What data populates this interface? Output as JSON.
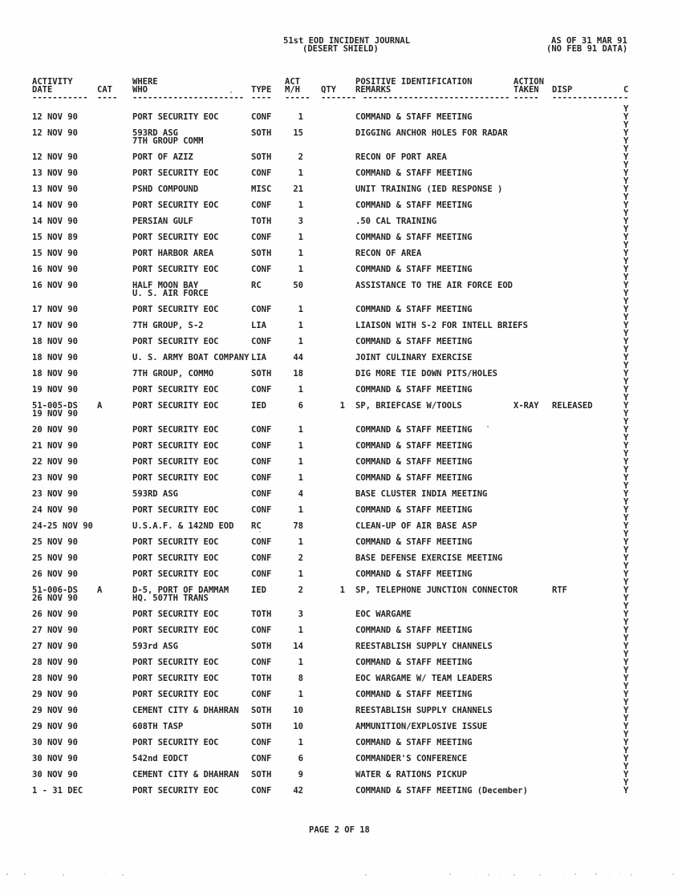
{
  "header": {
    "title_line1": "51st EOD INCIDENT JOURNAL",
    "title_line2": "(DESERT SHIELD)",
    "as_of_line1": "AS OF 31 MAR 91",
    "as_of_line2": "(NO FEB 91 DATA)"
  },
  "table": {
    "columns": {
      "date": {
        "l1": "ACTIVITY",
        "l2": "DATE",
        "rule": "-----------"
      },
      "cat": {
        "l2": "CAT",
        "rule": "----"
      },
      "where": {
        "l1": "WHERE",
        "l2": "WHO",
        "rule": "----------------------"
      },
      "type": {
        "l2": "TYPE",
        "rule": "----"
      },
      "mh": {
        "l1": "ACT",
        "l2": "M/H",
        "rule": "-----"
      },
      "qty": {
        "l2": "QTY",
        "rule": "-------"
      },
      "remarks": {
        "l1": "POSITIVE IDENTIFICATION",
        "l2": "REMARKS",
        "rule": "-----------------------------"
      },
      "action": {
        "l1": "ACTION",
        "l2": "TAKEN",
        "rule": "-----"
      },
      "disp": {
        "l2": "DISP",
        "rule": "--------------"
      },
      "c": {
        "l2": "C",
        "rule": "-"
      }
    },
    "complete_flag": "Y",
    "rows": [
      {
        "date": "12 NOV 90",
        "where": "PORT SECURITY EOC",
        "type": "CONF",
        "mh": "1",
        "remarks": "COMMAND & STAFF MEETING"
      },
      {
        "date": "12 NOV 90",
        "where": "593RD ASG",
        "where2": "7TH GROUP COMM",
        "type": "SOTH",
        "mh": "15",
        "remarks": "DIGGING ANCHOR HOLES FOR RADAR"
      },
      {
        "date": "12 NOV 90",
        "where": "PORT OF AZIZ",
        "type": "SOTH",
        "mh": "2",
        "remarks": "RECON OF PORT AREA"
      },
      {
        "date": "13 NOV 90",
        "where": "PORT SECURITY EOC",
        "type": "CONF",
        "mh": "1",
        "remarks": "COMMAND & STAFF MEETING"
      },
      {
        "date": "13 NOV 90",
        "where": "PSHD COMPOUND",
        "type": "MISC",
        "mh": "21",
        "remarks": "UNIT TRAINING (IED RESPONSE )"
      },
      {
        "date": "14 NOV 90",
        "where": "PORT SECURITY EOC",
        "type": "CONF",
        "mh": "1",
        "remarks": "COMMAND & STAFF MEETING"
      },
      {
        "date": "14 NOV 90",
        "where": "PERSIAN GULF",
        "type": "TOTH",
        "mh": "3",
        "remarks": ".50 CAL TRAINING"
      },
      {
        "date": "15 NOV 89",
        "where": "PORT SECURITY EOC",
        "type": "CONF",
        "mh": "1",
        "remarks": "COMMAND & STAFF MEETING"
      },
      {
        "date": "15 NOV 90",
        "where": "PORT HARBOR AREA",
        "type": "SOTH",
        "mh": "1",
        "remarks": "RECON OF AREA"
      },
      {
        "date": "16 NOV 90",
        "where": "PORT SECURITY EOC",
        "type": "CONF",
        "mh": "1",
        "remarks": "COMMAND & STAFF MEETING"
      },
      {
        "date": "16 NOV 90",
        "where": "HALF MOON BAY",
        "where2": "U. S. AIR FORCE",
        "type": "RC",
        "mh": "50",
        "remarks": "ASSISTANCE TO THE AIR FORCE EOD"
      },
      {
        "date": "17 NOV 90",
        "where": "PORT SECURITY EOC",
        "type": "CONF",
        "mh": "1",
        "remarks": "COMMAND & STAFF MEETING"
      },
      {
        "date": "17 NOV 90",
        "where": "7TH GROUP, S-2",
        "type": "LIA",
        "mh": "1",
        "remarks": "LIAISON WITH S-2 FOR INTELL BRIEFS"
      },
      {
        "date": "18 NOV 90",
        "where": "PORT SECURITY EOC",
        "type": "CONF",
        "mh": "1",
        "remarks": "COMMAND & STAFF MEETING"
      },
      {
        "date": "18 NOV 90",
        "where": "U. S. ARMY BOAT COMPANY",
        "type": "LIA",
        "mh": "44",
        "remarks": "JOINT CULINARY EXERCISE"
      },
      {
        "date": "18 NOV 90",
        "where": "7TH GROUP, COMMO",
        "type": "SOTH",
        "mh": "18",
        "remarks": "DIG MORE TIE DOWN PITS/HOLES"
      },
      {
        "date": "19 NOV 90",
        "where": "PORT SECURITY EOC",
        "type": "CONF",
        "mh": "1",
        "remarks": "COMMAND & STAFF MEETING"
      },
      {
        "date": "51-005-DS",
        "date2": "19 NOV 90",
        "cat": "A",
        "where": "PORT SECURITY EOC",
        "type": "IED",
        "mh": "6",
        "qty": "1",
        "remarks": "SP, BRIEFCASE W/TOOLS",
        "action": "X-RAY",
        "disp": "RELEASED"
      },
      {
        "date": "20 NOV 90",
        "where": "PORT SECURITY EOC",
        "type": "CONF",
        "mh": "1",
        "remarks": "COMMAND & STAFF MEETING"
      },
      {
        "date": "21 NOV 90",
        "where": "PORT SECURITY EOC",
        "type": "CONF",
        "mh": "1",
        "remarks": "COMMAND & STAFF MEETING"
      },
      {
        "date": "22 NOV 90",
        "where": "PORT SECURITY EOC",
        "type": "CONF",
        "mh": "1",
        "remarks": "COMMAND & STAFF MEETING"
      },
      {
        "date": "23 NOV 90",
        "where": "PORT SECURITY EOC",
        "type": "CONF",
        "mh": "1",
        "remarks": "COMMAND & STAFF MEETING"
      },
      {
        "date": "23 NOV 90",
        "where": "593RD ASG",
        "type": "CONF",
        "mh": "4",
        "remarks": "BASE CLUSTER INDIA MEETING"
      },
      {
        "date": "24 NOV 90",
        "where": "PORT SECURITY EOC",
        "type": "CONF",
        "mh": "1",
        "remarks": "COMMAND & STAFF MEETING"
      },
      {
        "date": "24-25 NOV 90",
        "where": "U.S.A.F. & 142ND EOD",
        "type": "RC",
        "mh": "78",
        "remarks": "CLEAN-UP OF AIR BASE ASP"
      },
      {
        "date": "25 NOV 90",
        "where": "PORT SECURITY EOC",
        "type": "CONF",
        "mh": "1",
        "remarks": "COMMAND & STAFF MEETING"
      },
      {
        "date": "25 NOV 90",
        "where": "PORT SECURITY EOC",
        "type": "CONF",
        "mh": "2",
        "remarks": "BASE DEFENSE EXERCISE MEETING"
      },
      {
        "date": "26 NOV 90",
        "where": "PORT SECURITY EOC",
        "type": "CONF",
        "mh": "1",
        "remarks": "COMMAND & STAFF MEETING"
      },
      {
        "date": "51-006-DS",
        "date2": "26 NOV 90",
        "cat": "A",
        "where": "D-5, PORT OF DAMMAM",
        "where2": "HQ. 507TH TRANS",
        "type": "IED",
        "mh": "2",
        "qty": "1",
        "remarks": "SP, TELEPHONE JUNCTION CONNECTOR",
        "disp": "RTF"
      },
      {
        "date": "26 NOV 90",
        "where": "PORT SECURITY EOC",
        "type": "TOTH",
        "mh": "3",
        "remarks": "EOC WARGAME"
      },
      {
        "date": "27 NOV 90",
        "where": "PORT SECURITY EOC",
        "type": "CONF",
        "mh": "1",
        "remarks": "COMMAND & STAFF MEETING"
      },
      {
        "date": "27 NOV 90",
        "where": "593rd ASG",
        "type": "SOTH",
        "mh": "14",
        "remarks": "REESTABLISH SUPPLY CHANNELS"
      },
      {
        "date": "28 NOV 90",
        "where": "PORT SECURITY EOC",
        "type": "CONF",
        "mh": "1",
        "remarks": "COMMAND & STAFF MEETING"
      },
      {
        "date": "28 NOV 90",
        "where": "PORT SECURITY EOC",
        "type": "TOTH",
        "mh": "8",
        "remarks": "EOC WARGAME W/ TEAM LEADERS"
      },
      {
        "date": "29 NOV 90",
        "where": "PORT SECURITY EOC",
        "type": "CONF",
        "mh": "1",
        "remarks": "COMMAND & STAFF MEETING"
      },
      {
        "date": "29 NOV 90",
        "where": "CEMENT CITY & DHAHRAN",
        "type": "SOTH",
        "mh": "10",
        "remarks": "REESTABLISH SUPPLY CHANNELS"
      },
      {
        "date": "29 NOV 90",
        "where": "608TH TASP",
        "type": "SOTH",
        "mh": "10",
        "remarks": "AMMUNITION/EXPLOSIVE ISSUE"
      },
      {
        "date": "30 NOV 90",
        "where": "PORT SECURITY EOC",
        "type": "CONF",
        "mh": "1",
        "remarks": "COMMAND & STAFF MEETING"
      },
      {
        "date": "30 NOV 90",
        "where": "542nd EODCT",
        "type": "CONF",
        "mh": "6",
        "remarks": "COMMANDER'S CONFERENCE"
      },
      {
        "date": "30 NOV 90",
        "where": "CEMENT CITY & DHAHRAN",
        "type": "SOTH",
        "mh": "9",
        "remarks": "WATER & RATIONS PICKUP"
      },
      {
        "date": "1 - 31 DEC",
        "where": "PORT SECURITY EOC",
        "type": "CONF",
        "mh": "42",
        "remarks": "COMMAND & STAFF MEETING (December)"
      }
    ]
  },
  "footer": {
    "page_label": "PAGE 2 OF 18"
  }
}
